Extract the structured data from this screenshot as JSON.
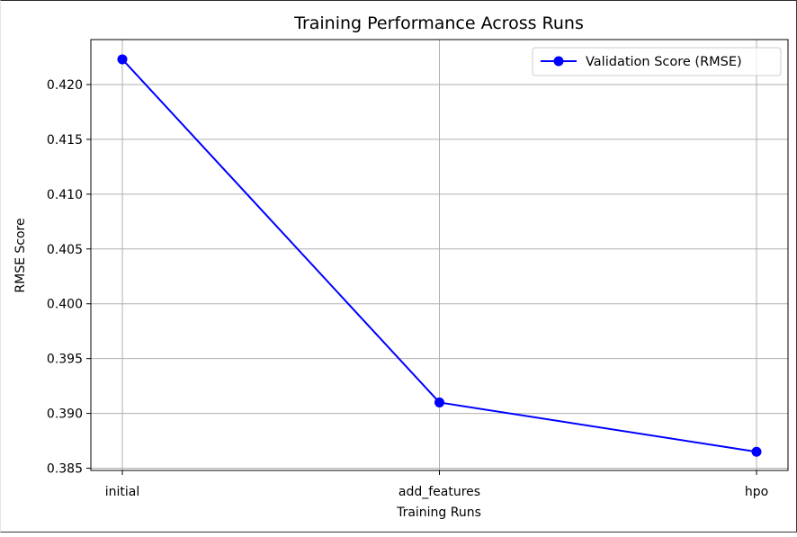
{
  "chart_data": {
    "type": "line",
    "title": "Training Performance Across Runs",
    "xlabel": "Training Runs",
    "ylabel": "RMSE Score",
    "categories": [
      "initial",
      "add_features",
      "hpo"
    ],
    "series": [
      {
        "name": "Validation Score (RMSE)",
        "values": [
          0.4223,
          0.391,
          0.3865
        ],
        "color": "#0000ff",
        "marker": "circle"
      }
    ],
    "ylim": [
      0.3848,
      0.4241
    ],
    "yticks": [
      0.385,
      0.39,
      0.395,
      0.4,
      0.405,
      0.41,
      0.415,
      0.42
    ],
    "ytick_labels": [
      "0.385",
      "0.390",
      "0.395",
      "0.400",
      "0.405",
      "0.410",
      "0.415",
      "0.420"
    ],
    "grid": true,
    "legend_position": "top-right"
  }
}
